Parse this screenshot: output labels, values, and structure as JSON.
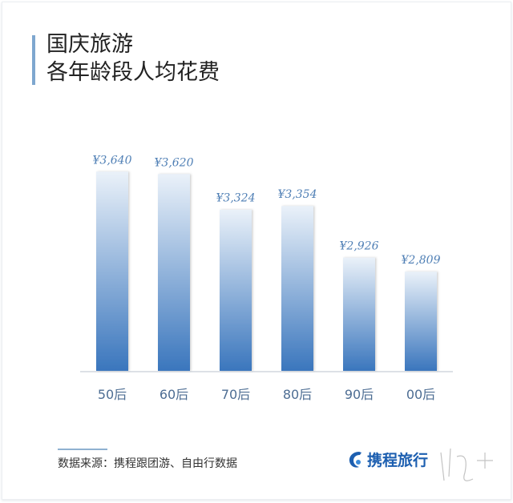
{
  "title": {
    "line1": "国庆旅游",
    "line2": "各年龄段人均花费"
  },
  "chart_data": {
    "type": "bar",
    "categories": [
      "50后",
      "60后",
      "70后",
      "80后",
      "90后",
      "00后"
    ],
    "values": [
      3640,
      3620,
      3324,
      3354,
      2926,
      2809
    ],
    "data_labels": [
      "¥3,640",
      "¥3,620",
      "¥3,324",
      "¥3,354",
      "¥2,926",
      "¥2,809"
    ],
    "title": "",
    "xlabel": "",
    "ylabel": "",
    "ylim": [
      1985,
      3700
    ],
    "grid": false,
    "legend": "none",
    "colors": {
      "bar_top": "#eaf1f9",
      "bar_bottom": "#3a76bd",
      "label": "#4f7fb5",
      "tick": "#4d6d93"
    }
  },
  "footer": {
    "source": "数据来源：携程跟团游、自由行数据",
    "logo_text": "携程旅行",
    "logo_icon": "dolphin-icon",
    "watermark": "南方+"
  }
}
